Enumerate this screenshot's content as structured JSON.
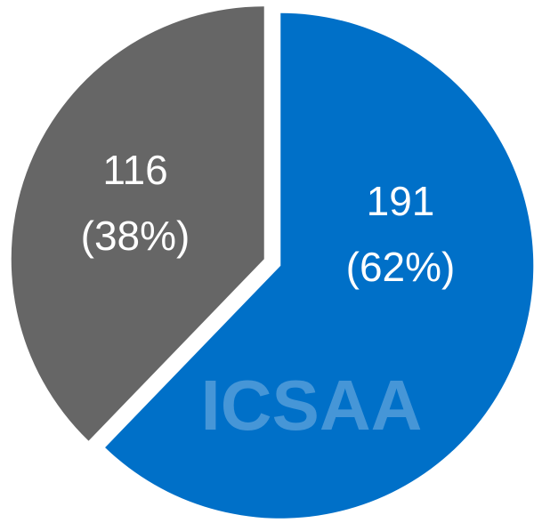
{
  "chart_data": {
    "type": "pie",
    "categories": [
      null,
      null
    ],
    "values": [
      191,
      116
    ],
    "percents": [
      62,
      38
    ],
    "percent_labels": [
      "(62%)",
      "(38%)"
    ],
    "colors": [
      "#0070c8",
      "#666666"
    ],
    "watermark": "ICSAA"
  }
}
